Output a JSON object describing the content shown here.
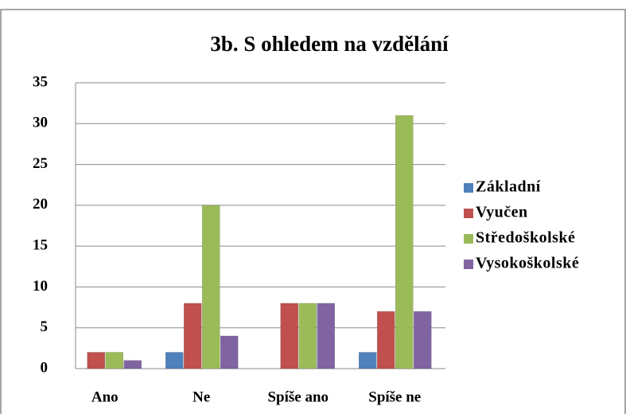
{
  "chart_data": {
    "type": "bar",
    "title": "3b. S ohledem na vzdělání",
    "categories": [
      "Ano",
      "Ne",
      "Spíše ano",
      "Spíše ne"
    ],
    "series": [
      {
        "name": "Základní",
        "color": "#4f81bd",
        "values": [
          0,
          2,
          0,
          2
        ]
      },
      {
        "name": "Vyučen",
        "color": "#c0504d",
        "values": [
          2,
          8,
          8,
          7
        ]
      },
      {
        "name": "Středoškolské",
        "color": "#9bbb59",
        "values": [
          2,
          20,
          8,
          31
        ]
      },
      {
        "name": "Vysokoškolské",
        "color": "#8064a2",
        "values": [
          1,
          4,
          8,
          7
        ]
      }
    ],
    "ylim": [
      0,
      35
    ],
    "yticks": [
      0,
      5,
      10,
      15,
      20,
      25,
      30,
      35
    ],
    "grid": true,
    "legend": "right"
  }
}
